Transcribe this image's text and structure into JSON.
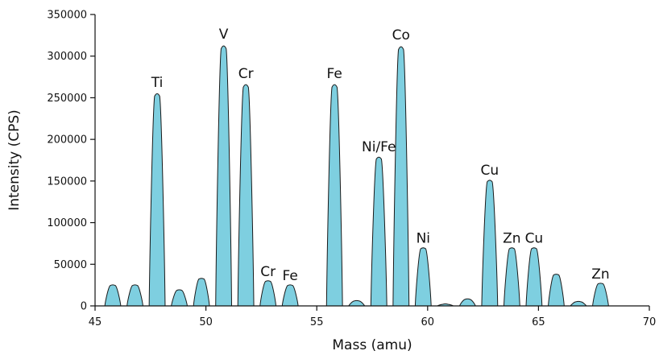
{
  "chart_data": {
    "type": "area",
    "xlabel": "Mass (amu)",
    "ylabel": "Intensity (CPS)",
    "xlim": [
      45,
      70
    ],
    "ylim": [
      0,
      350000
    ],
    "x_ticks": [
      "45",
      "50",
      "55",
      "60",
      "65",
      "70"
    ],
    "y_ticks": [
      "0",
      "50000",
      "100000",
      "150000",
      "200000",
      "250000",
      "300000",
      "350000"
    ],
    "fill_color": "#7ecfe0",
    "stroke_color": "#1a1a1a",
    "peaks": [
      {
        "mass": 45.8,
        "intensity": 25000,
        "label": ""
      },
      {
        "mass": 46.8,
        "intensity": 25000,
        "label": ""
      },
      {
        "mass": 47.8,
        "intensity": 257000,
        "label": "Ti"
      },
      {
        "mass": 48.8,
        "intensity": 19000,
        "label": ""
      },
      {
        "mass": 49.8,
        "intensity": 33000,
        "label": ""
      },
      {
        "mass": 50.8,
        "intensity": 315000,
        "label": "V"
      },
      {
        "mass": 51.8,
        "intensity": 268000,
        "label": "Cr"
      },
      {
        "mass": 52.8,
        "intensity": 30000,
        "label": "Cr"
      },
      {
        "mass": 53.8,
        "intensity": 25000,
        "label": "Fe"
      },
      {
        "mass": 55.8,
        "intensity": 268000,
        "label": "Fe"
      },
      {
        "mass": 56.8,
        "intensity": 6000,
        "label": ""
      },
      {
        "mass": 57.8,
        "intensity": 180000,
        "label": "Ni/Fe"
      },
      {
        "mass": 58.8,
        "intensity": 314000,
        "label": "Co"
      },
      {
        "mass": 59.8,
        "intensity": 70000,
        "label": "Ni"
      },
      {
        "mass": 60.8,
        "intensity": 2000,
        "label": ""
      },
      {
        "mass": 61.8,
        "intensity": 8000,
        "label": ""
      },
      {
        "mass": 62.8,
        "intensity": 152000,
        "label": "Cu"
      },
      {
        "mass": 63.8,
        "intensity": 70000,
        "label": "Zn"
      },
      {
        "mass": 64.8,
        "intensity": 70000,
        "label": "Cu"
      },
      {
        "mass": 65.8,
        "intensity": 38000,
        "label": ""
      },
      {
        "mass": 66.8,
        "intensity": 5000,
        "label": ""
      },
      {
        "mass": 67.8,
        "intensity": 27000,
        "label": "Zn"
      }
    ]
  }
}
